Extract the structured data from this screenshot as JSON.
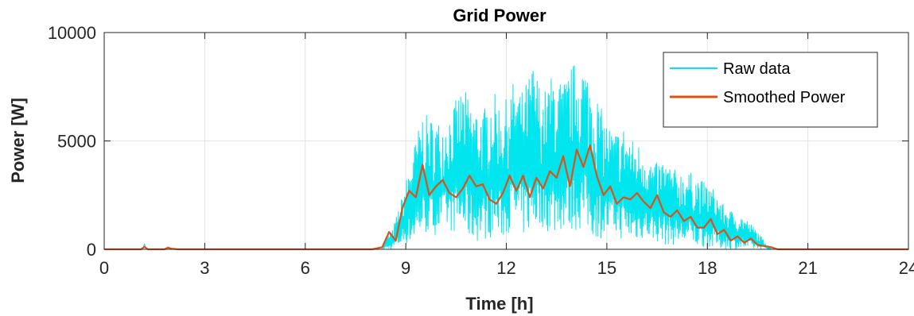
{
  "chart_data": {
    "type": "line",
    "title": "Grid Power",
    "xlabel": "Time [h]",
    "ylabel": "Power [W]",
    "xlim": [
      0,
      24
    ],
    "ylim": [
      0,
      10000
    ],
    "xticks": [
      0,
      3,
      6,
      9,
      12,
      15,
      18,
      21,
      24
    ],
    "yticks": [
      0,
      5000,
      10000
    ],
    "grid": true,
    "legend_position": "top-right",
    "colors": {
      "raw": "#00e5ee",
      "smoothed": "#d95319"
    },
    "series": [
      {
        "name": "Raw data",
        "color": "#00e5ee",
        "envelope": {
          "x": [
            8.3,
            8.6,
            8.9,
            9.2,
            9.5,
            9.8,
            10.1,
            10.4,
            10.7,
            11.0,
            11.3,
            11.6,
            11.9,
            12.2,
            12.5,
            12.8,
            13.1,
            13.4,
            13.7,
            14.0,
            14.3,
            14.6,
            14.9,
            15.2,
            15.5,
            15.8,
            16.1,
            16.4,
            16.7,
            17.0,
            17.3,
            17.6,
            17.9,
            18.2,
            18.5,
            18.8,
            19.1,
            19.4,
            19.7,
            19.9
          ],
          "high": [
            300,
            900,
            2500,
            4500,
            6300,
            6000,
            5900,
            6600,
            7500,
            6700,
            6400,
            7300,
            6600,
            7700,
            7300,
            8600,
            7200,
            8200,
            7700,
            8600,
            8700,
            7600,
            6200,
            5400,
            5700,
            5000,
            4800,
            3900,
            4200,
            3700,
            3600,
            3500,
            3100,
            2800,
            2000,
            1700,
            1500,
            1000,
            400,
            100
          ],
          "low": [
            0,
            0,
            200,
            300,
            700,
            600,
            900,
            800,
            700,
            300,
            400,
            600,
            500,
            1000,
            600,
            900,
            1000,
            600,
            900,
            800,
            900,
            500,
            500,
            700,
            400,
            300,
            500,
            400,
            200,
            200,
            200,
            100,
            100,
            0,
            0,
            0,
            0,
            0,
            0,
            0
          ]
        }
      },
      {
        "name": "Smoothed Power",
        "color": "#d95319",
        "x": [
          0,
          1.1,
          1.2,
          1.3,
          1.8,
          1.9,
          2.0,
          2.2,
          8.0,
          8.3,
          8.5,
          8.7,
          8.9,
          9.1,
          9.3,
          9.5,
          9.7,
          9.9,
          10.1,
          10.3,
          10.5,
          10.7,
          10.9,
          11.1,
          11.3,
          11.5,
          11.7,
          11.9,
          12.1,
          12.3,
          12.5,
          12.7,
          12.9,
          13.1,
          13.3,
          13.5,
          13.7,
          13.9,
          14.1,
          14.3,
          14.5,
          14.7,
          14.9,
          15.1,
          15.3,
          15.5,
          15.7,
          15.9,
          16.1,
          16.3,
          16.5,
          16.7,
          16.9,
          17.1,
          17.3,
          17.5,
          17.7,
          17.9,
          18.1,
          18.3,
          18.5,
          18.7,
          18.9,
          19.1,
          19.3,
          19.5,
          19.7,
          19.9,
          20.1,
          24
        ],
        "values": [
          0,
          0,
          120,
          0,
          0,
          80,
          30,
          0,
          0,
          100,
          800,
          400,
          1900,
          2700,
          2400,
          3900,
          2500,
          2900,
          3200,
          2600,
          2400,
          2800,
          3400,
          2900,
          3000,
          2300,
          2100,
          2600,
          3400,
          2700,
          3400,
          2400,
          3300,
          2800,
          3600,
          3300,
          4300,
          2900,
          4600,
          3800,
          4800,
          3400,
          2500,
          2900,
          2100,
          2400,
          2300,
          2600,
          2200,
          1900,
          2500,
          1700,
          1500,
          1800,
          1300,
          1500,
          1000,
          1000,
          1400,
          700,
          900,
          400,
          600,
          300,
          500,
          200,
          150,
          100,
          0,
          0
        ]
      }
    ]
  }
}
